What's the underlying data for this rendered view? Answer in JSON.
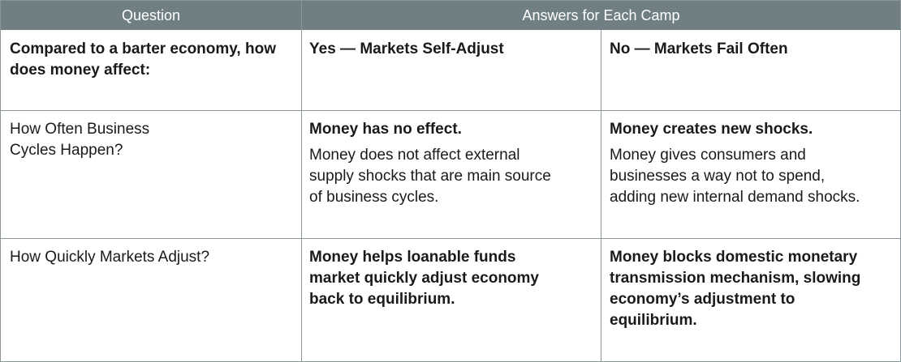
{
  "header": {
    "question": "Question",
    "answers": "Answers for Each Camp"
  },
  "rows": [
    {
      "question": "Compared to a barter economy, how does money affect:",
      "yes": {
        "title": "Yes — Markets Self-Adjust",
        "body": ""
      },
      "no": {
        "title": "No — Markets Fail Often",
        "body": ""
      }
    },
    {
      "question_line1": "How Often Business",
      "question_line2": "Cycles Happen?",
      "yes": {
        "title": "Money has no effect.",
        "body_line1": "Money does not affect external",
        "body_line2": "supply shocks that are main source",
        "body_line3": "of business cycles."
      },
      "no": {
        "title": "Money creates new shocks.",
        "body_line1": "Money gives consumers and",
        "body_line2": "businesses a way not to spend,",
        "body_line3": "adding new internal demand shocks."
      }
    },
    {
      "question": "How Quickly Markets Adjust?",
      "yes": {
        "line1": "Money helps loanable funds",
        "line2": "market quickly adjust economy",
        "line3": "back to equilibrium."
      },
      "no": {
        "line1": "Money blocks domestic monetary",
        "line2": "transmission mechanism, slowing",
        "line3": "economy’s adjustment to",
        "line4": "equilibrium."
      }
    }
  ]
}
